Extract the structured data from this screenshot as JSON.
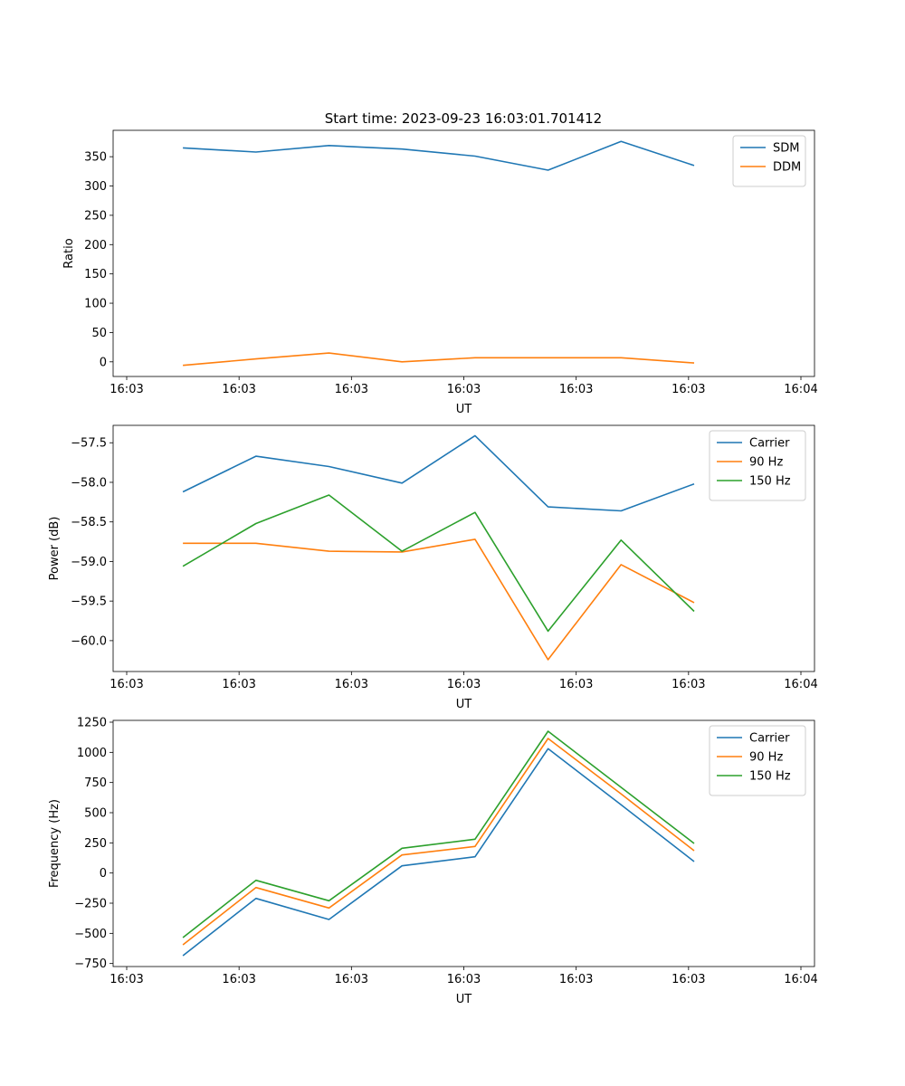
{
  "figure_title": "Start time: 2023-09-23 16:03:01.701412",
  "chart_data": [
    {
      "type": "line",
      "ylabel": "Ratio",
      "xlabel": "UT",
      "xlim": [
        0,
        6
      ],
      "x_tick_positions": [
        0,
        1,
        2,
        3,
        4,
        5,
        6
      ],
      "x_tick_labels": [
        "16:03",
        "16:03",
        "16:03",
        "16:03",
        "16:03",
        "16:03",
        "16:04"
      ],
      "ylim": [
        -25,
        395
      ],
      "yticks": [
        0,
        50,
        100,
        150,
        200,
        250,
        300,
        350
      ],
      "y_tick_labels": [
        "0",
        "50",
        "100",
        "150",
        "200",
        "250",
        "300",
        "350"
      ],
      "legend_position": "top-right",
      "x": [
        0.5,
        1.15,
        1.8,
        2.45,
        3.1,
        3.75,
        4.4,
        5.05
      ],
      "series": [
        {
          "name": "SDM",
          "color": "#1f77b4",
          "values": [
            365,
            358,
            369,
            363,
            351,
            327,
            376,
            335
          ]
        },
        {
          "name": "DDM",
          "color": "#ff7f0e",
          "values": [
            -6,
            5,
            15,
            0,
            7,
            7,
            7,
            -2
          ]
        }
      ]
    },
    {
      "type": "line",
      "ylabel": "Power (dB)",
      "xlabel": "UT",
      "xlim": [
        0,
        6
      ],
      "x_tick_positions": [
        0,
        1,
        2,
        3,
        4,
        5,
        6
      ],
      "x_tick_labels": [
        "16:03",
        "16:03",
        "16:03",
        "16:03",
        "16:03",
        "16:03",
        "16:04"
      ],
      "ylim": [
        -60.39,
        -57.28
      ],
      "yticks": [
        -60.0,
        -59.5,
        -59.0,
        -58.5,
        -58.0,
        -57.5
      ],
      "y_tick_labels": [
        "−60.0",
        "−59.5",
        "−59.0",
        "−58.5",
        "−58.0",
        "−57.5"
      ],
      "legend_position": "top-right",
      "x": [
        0.5,
        1.15,
        1.8,
        2.45,
        3.1,
        3.75,
        4.4,
        5.05
      ],
      "series": [
        {
          "name": "Carrier",
          "color": "#1f77b4",
          "values": [
            -58.12,
            -57.67,
            -57.8,
            -58.01,
            -57.41,
            -58.31,
            -58.36,
            -58.02
          ]
        },
        {
          "name": "90 Hz",
          "color": "#ff7f0e",
          "values": [
            -58.77,
            -58.77,
            -58.87,
            -58.88,
            -58.72,
            -60.24,
            -59.04,
            -59.52
          ]
        },
        {
          "name": "150 Hz",
          "color": "#2ca02c",
          "values": [
            -59.06,
            -58.52,
            -58.16,
            -58.87,
            -58.38,
            -59.88,
            -58.73,
            -59.63
          ]
        }
      ]
    },
    {
      "type": "line",
      "ylabel": "Frequency (Hz)",
      "xlabel": "UT",
      "xlim": [
        0,
        6
      ],
      "x_tick_positions": [
        0,
        1,
        2,
        3,
        4,
        5,
        6
      ],
      "x_tick_labels": [
        "16:03",
        "16:03",
        "16:03",
        "16:03",
        "16:03",
        "16:03",
        "16:04"
      ],
      "ylim": [
        -775,
        1265
      ],
      "yticks": [
        -750,
        -500,
        -250,
        0,
        250,
        500,
        750,
        1000,
        1250
      ],
      "y_tick_labels": [
        "−750",
        "−500",
        "−250",
        "0",
        "250",
        "500",
        "750",
        "1000",
        "1250"
      ],
      "legend_position": "top-right",
      "x": [
        0.5,
        1.15,
        1.8,
        2.45,
        3.1,
        3.75,
        4.4,
        5.05
      ],
      "series": [
        {
          "name": "Carrier",
          "color": "#1f77b4",
          "values": [
            -685,
            -210,
            -385,
            60,
            135,
            1030,
            565,
            95
          ]
        },
        {
          "name": "90 Hz",
          "color": "#ff7f0e",
          "values": [
            -595,
            -120,
            -290,
            150,
            220,
            1115,
            655,
            185
          ]
        },
        {
          "name": "150 Hz",
          "color": "#2ca02c",
          "values": [
            -535,
            -60,
            -230,
            205,
            280,
            1175,
            710,
            245
          ]
        }
      ]
    }
  ]
}
